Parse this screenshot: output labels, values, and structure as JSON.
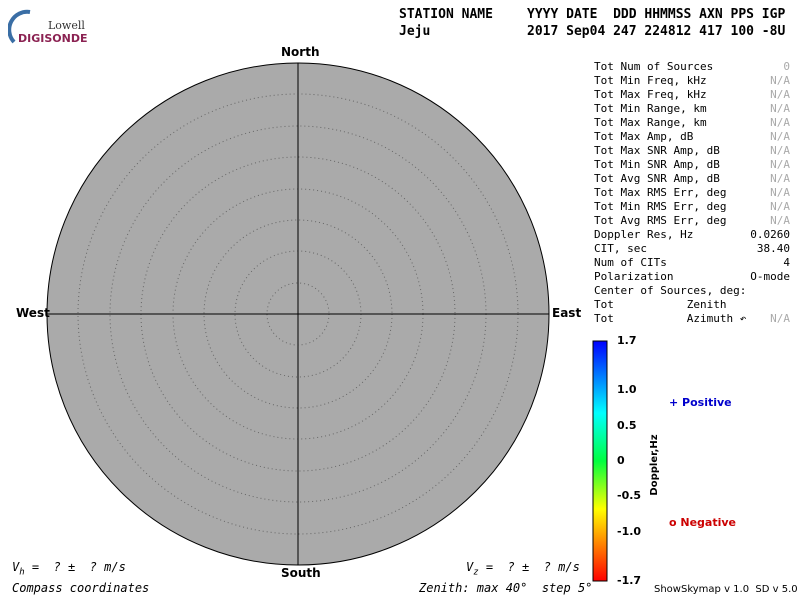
{
  "logo": {
    "line1": "Lowell",
    "line2": "DIGISONDE"
  },
  "header": {
    "station_label": "STATION NAME",
    "station": "Jeju",
    "fields_label": "YYYY DATE  DDD HHMMSS AXN PPS IGP",
    "fields": "2017 Sep04 247 224812 417 100 -8U"
  },
  "compass": {
    "north": "North",
    "south": "South",
    "east": "East",
    "west": "West"
  },
  "stats": {
    "rows": [
      [
        "Tot Num of Sources",
        "0"
      ],
      [
        "Tot Min Freq, kHz",
        "N/A"
      ],
      [
        "Tot Max Freq, kHz",
        "N/A"
      ],
      [
        "Tot Min Range, km",
        "N/A"
      ],
      [
        "Tot Max Range, km",
        "N/A"
      ],
      [
        "Tot Max Amp, dB",
        "N/A"
      ],
      [
        "Tot Max SNR Amp, dB",
        "N/A"
      ],
      [
        "Tot Min SNR Amp, dB",
        "N/A"
      ],
      [
        "Tot Avg SNR Amp, dB",
        "N/A"
      ],
      [
        "Tot Max RMS Err, deg",
        "N/A"
      ],
      [
        "Tot Min RMS Err, deg",
        "N/A"
      ],
      [
        "Tot Avg RMS Err, deg",
        "N/A"
      ],
      [
        "Doppler Res, Hz",
        "0.0260"
      ],
      [
        "CIT, sec",
        "38.40"
      ],
      [
        "Num of CITs",
        "4"
      ],
      [
        "Polarization",
        "O-mode"
      ],
      [
        "Center of Sources, deg:"
      ],
      [
        "Tot           Zenith"
      ],
      [
        "Tot           Azimuth ↶",
        "N/A"
      ]
    ]
  },
  "colorbar": {
    "title": "Doppler,Hz",
    "range": [
      -1.7,
      1.7
    ],
    "ticks": [
      1.7,
      {
        "value": 1.0,
        "label": "1.0"
      },
      0.5,
      0,
      -0.5,
      {
        "value": -1.0,
        "label": "-1.0"
      },
      -1.7
    ]
  },
  "legend": {
    "positive": "+ Positive",
    "negative": "o Negative"
  },
  "footer": {
    "vh_v": "V",
    "vh_sub": "h",
    "vh_rest": " =  ? ±  ? m/s",
    "vz_v": "V",
    "vz_sub": "z",
    "vz_rest": " =  ? ±  ? m/s",
    "coords": "Compass coordinates",
    "zenith": "Zenith: max 40°  step 5°",
    "version": "ShowSkymap v 1.0  SD v 5.0"
  }
}
